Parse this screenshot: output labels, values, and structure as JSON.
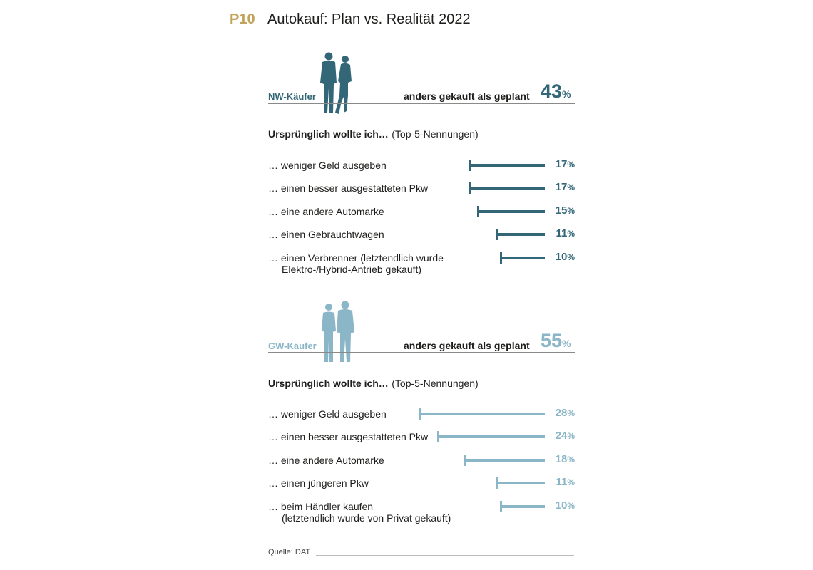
{
  "header": {
    "code": "P10",
    "title": "Autokauf: Plan vs. Realität 2022"
  },
  "colors": {
    "nw": "#336778",
    "gw": "#8bb6c7",
    "accent": "#c2a35a"
  },
  "chart_data": [
    {
      "type": "bar",
      "group_label": "NW-Käufer",
      "headline": "anders gekauft als geplant",
      "headline_value": 43,
      "subtitle_bold": "Ursprünglich wollte ich…",
      "subtitle_normal": "(Top-5-Nennungen)",
      "categories": [
        [
          "… weniger Geld ausgeben"
        ],
        [
          "… einen besser ausgestatteten Pkw"
        ],
        [
          "… eine andere Automarke"
        ],
        [
          "… einen Gebrauchtwagen"
        ],
        [
          "… einen Verbrenner (letztendlich wurde",
          "Elektro-/Hybrid-Antrieb gekauft)"
        ]
      ],
      "values": [
        17,
        17,
        15,
        11,
        10
      ],
      "unit": "%",
      "color": "#336778"
    },
    {
      "type": "bar",
      "group_label": "GW-Käufer",
      "headline": "anders gekauft als geplant",
      "headline_value": 55,
      "subtitle_bold": "Ursprünglich wollte ich…",
      "subtitle_normal": "(Top-5-Nennungen)",
      "categories": [
        [
          "… weniger Geld ausgeben"
        ],
        [
          "… einen besser ausgestatteten Pkw"
        ],
        [
          "… eine andere Automarke"
        ],
        [
          "… einen jüngeren Pkw"
        ],
        [
          "… beim Händler kaufen",
          "(letztendlich wurde von Privat gekauft)"
        ]
      ],
      "values": [
        28,
        24,
        18,
        11,
        10
      ],
      "unit": "%",
      "color": "#8bb6c7"
    }
  ],
  "footer": {
    "source": "Quelle: DAT"
  }
}
